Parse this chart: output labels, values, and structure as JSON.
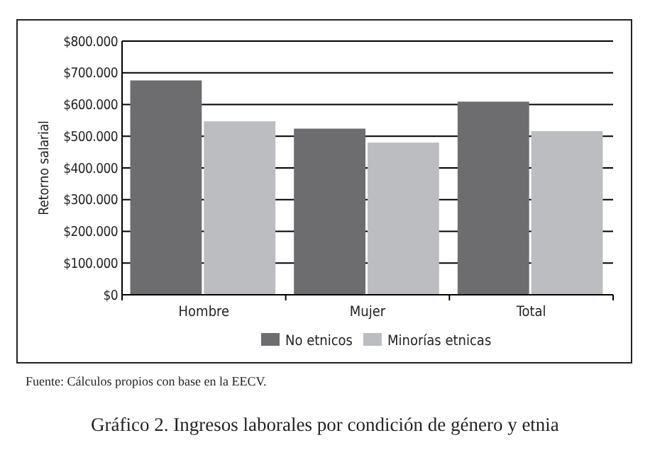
{
  "chart_data": {
    "type": "bar",
    "title": "Gráfico 2. Ingresos laborales por condición de género y etnia",
    "ylabel": "Retorno salarial",
    "categories": [
      "Hombre",
      "Mujer",
      "Total"
    ],
    "series": [
      {
        "name": "No etnicos",
        "color": "#6d6d6f",
        "values": [
          676000,
          524000,
          609000
        ]
      },
      {
        "name": "Minorías etnicas",
        "color": "#bcbdc0",
        "values": [
          547000,
          480000,
          516000
        ]
      }
    ],
    "ylim": [
      0,
      800000
    ],
    "yticks": [
      {
        "value": 0,
        "label": "$0"
      },
      {
        "value": 100000,
        "label": "$100.000"
      },
      {
        "value": 200000,
        "label": "$200.000"
      },
      {
        "value": 300000,
        "label": "$300.000"
      },
      {
        "value": 400000,
        "label": "$400.000"
      },
      {
        "value": 500000,
        "label": "$500.000"
      },
      {
        "value": 600000,
        "label": "$600.000"
      },
      {
        "value": 700000,
        "label": "$700.000"
      },
      {
        "value": 800000,
        "label": "$800.000"
      }
    ],
    "grid": "y",
    "legend": "bottom",
    "annotations": [
      "Fuente: Cálculos propios con base en la EECV."
    ]
  }
}
